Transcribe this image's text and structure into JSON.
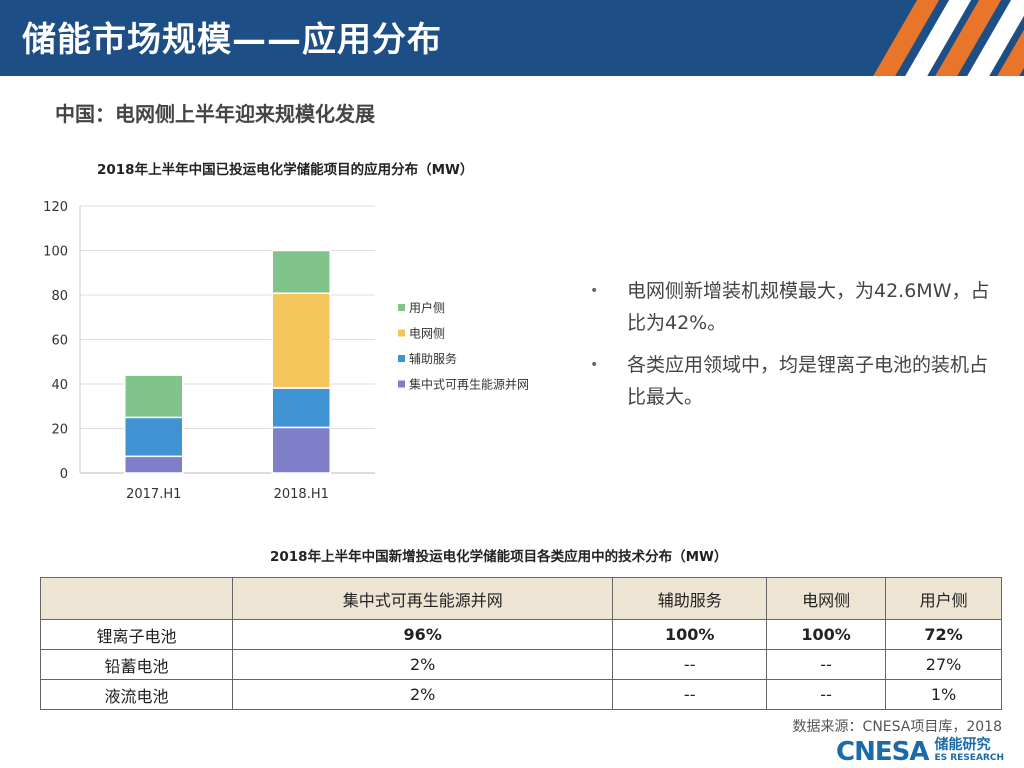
{
  "header": {
    "title": "储能市场规模——应用分布"
  },
  "subtitle": "中国：电网侧上半年迎来规模化发展",
  "colors": {
    "header_bg": "#1d4f86",
    "stripe_orange": "#e8752a",
    "table_header": "#ede4d3"
  },
  "chart_data": {
    "type": "bar",
    "stacked": true,
    "title": "2018年上半年中国已投运电化学储能项目的应用分布（MW）",
    "categories": [
      "2017.H1",
      "2018.H1"
    ],
    "ylim": [
      0,
      120
    ],
    "yticks": [
      0,
      20,
      40,
      60,
      80,
      100,
      120
    ],
    "grid": true,
    "legend_position": "right",
    "series": [
      {
        "name": "集中式可再生能源并网",
        "color": "#7f7fc9",
        "values": [
          7.5,
          20.5
        ]
      },
      {
        "name": "辅助服务",
        "color": "#3f93d2",
        "values": [
          17.5,
          17.7
        ]
      },
      {
        "name": "电网侧",
        "color": "#f4c55a",
        "values": [
          0,
          42.6
        ]
      },
      {
        "name": "用户侧",
        "color": "#80c48c",
        "values": [
          19,
          19.2
        ]
      }
    ]
  },
  "bullets": [
    "电网侧新增装机规模最大，为42.6MW，占比为42%。",
    "各类应用领域中，均是锂离子电池的装机占比最大。"
  ],
  "table": {
    "title": "2018年上半年中国新增投运电化学储能项目各类应用中的技术分布（MW）",
    "headers": [
      "",
      "集中式可再生能源并网",
      "辅助服务",
      "电网侧",
      "用户侧"
    ],
    "rows": [
      [
        "锂离子电池",
        "96%",
        "100%",
        "100%",
        "72%"
      ],
      [
        "铅蓄电池",
        "2%",
        "--",
        "--",
        "27%"
      ],
      [
        "液流电池",
        "2%",
        "--",
        "--",
        "1%"
      ]
    ]
  },
  "source": "数据来源：CNESA项目库，2018",
  "logo": {
    "main": "CNESA",
    "cn": "储能研究",
    "en": "ES RESEARCH"
  }
}
